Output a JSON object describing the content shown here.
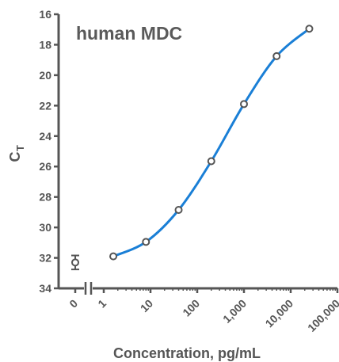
{
  "chart_data": {
    "type": "scatter",
    "title": "human MDC",
    "xlabel": "Concentration, pg/mL",
    "ylabel": "C",
    "ylabel_subscript": "T",
    "x_scale": "log",
    "x_ticks": [
      1,
      10,
      100,
      1000,
      10000,
      100000
    ],
    "x_tick_labels": [
      "1",
      "10",
      "100",
      "1,000",
      "10,000",
      "100,000"
    ],
    "x_zero_label": "0",
    "y_reversed": true,
    "ylim": [
      16,
      34
    ],
    "y_ticks": [
      16,
      18,
      20,
      22,
      24,
      26,
      28,
      30,
      32,
      34
    ],
    "y_tick_labels": [
      "16",
      "18",
      "20",
      "22",
      "24",
      "26",
      "28",
      "30",
      "32",
      "34"
    ],
    "zero_point": {
      "x": 0,
      "y": 32.3,
      "error": 0.25
    },
    "series": [
      {
        "x": [
          1.6,
          8,
          40,
          200,
          1000,
          5000,
          25000
        ],
        "y": [
          31.9,
          30.95,
          28.85,
          25.65,
          21.9,
          18.75,
          16.95
        ]
      }
    ],
    "curve_color": "#1a7fd6",
    "marker_color": "#555555",
    "axis_color": "#555555"
  }
}
